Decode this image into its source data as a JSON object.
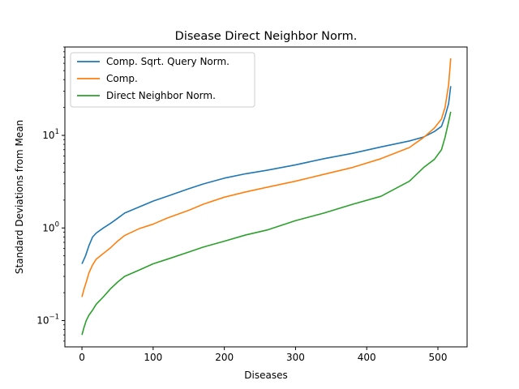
{
  "chart_data": {
    "type": "line",
    "title": "Disease Direct Neighbor Norm.",
    "xlabel": "Diseases",
    "ylabel": "Standard Deviations from Mean",
    "xlim": [
      -24,
      541
    ],
    "ylim": [
      0.052,
      90
    ],
    "yscale": "log",
    "grid": false,
    "legend_position": "top-left",
    "x_ticks": [
      0,
      100,
      200,
      300,
      400,
      500
    ],
    "y_ticks": [
      {
        "value": 0.1,
        "base": "10",
        "exp": "−1"
      },
      {
        "value": 1,
        "base": "10",
        "exp": "0"
      },
      {
        "value": 10,
        "base": "10",
        "exp": "1"
      }
    ],
    "series": [
      {
        "name": "Comp. Sqrt. Query Norm.",
        "color": "#1f77b4",
        "x": [
          0,
          5,
          10,
          15,
          20,
          30,
          40,
          50,
          60,
          80,
          100,
          120,
          150,
          170,
          200,
          230,
          260,
          300,
          340,
          380,
          420,
          460,
          480,
          495,
          505,
          510,
          515,
          518
        ],
        "y": [
          0.41,
          0.5,
          0.65,
          0.8,
          0.88,
          1.0,
          1.12,
          1.27,
          1.45,
          1.68,
          1.95,
          2.2,
          2.65,
          2.98,
          3.45,
          3.85,
          4.2,
          4.8,
          5.6,
          6.4,
          7.5,
          8.7,
          9.6,
          11.0,
          12.5,
          16.0,
          22.0,
          34.0
        ]
      },
      {
        "name": "Comp.",
        "color": "#ff7f0e",
        "x": [
          0,
          3,
          6,
          10,
          15,
          20,
          30,
          40,
          50,
          60,
          80,
          100,
          120,
          150,
          170,
          200,
          230,
          260,
          300,
          340,
          380,
          420,
          460,
          480,
          495,
          505,
          510,
          515,
          518
        ],
        "y": [
          0.18,
          0.22,
          0.26,
          0.33,
          0.4,
          0.46,
          0.53,
          0.61,
          0.72,
          0.83,
          0.98,
          1.1,
          1.28,
          1.55,
          1.8,
          2.15,
          2.45,
          2.75,
          3.2,
          3.8,
          4.5,
          5.6,
          7.4,
          9.5,
          12.0,
          15.0,
          20.0,
          35.0,
          68.0
        ]
      },
      {
        "name": "Direct Neighbor Norm.",
        "color": "#2ca02c",
        "x": [
          0,
          3,
          6,
          10,
          15,
          20,
          30,
          40,
          50,
          60,
          80,
          100,
          120,
          150,
          170,
          200,
          230,
          260,
          300,
          340,
          380,
          420,
          460,
          480,
          495,
          505,
          510,
          515,
          518
        ],
        "y": [
          0.07,
          0.085,
          0.1,
          0.115,
          0.13,
          0.15,
          0.18,
          0.22,
          0.26,
          0.3,
          0.35,
          0.41,
          0.46,
          0.55,
          0.62,
          0.72,
          0.84,
          0.95,
          1.2,
          1.45,
          1.8,
          2.2,
          3.2,
          4.5,
          5.5,
          7.0,
          9.5,
          14.0,
          18.0
        ]
      }
    ]
  }
}
